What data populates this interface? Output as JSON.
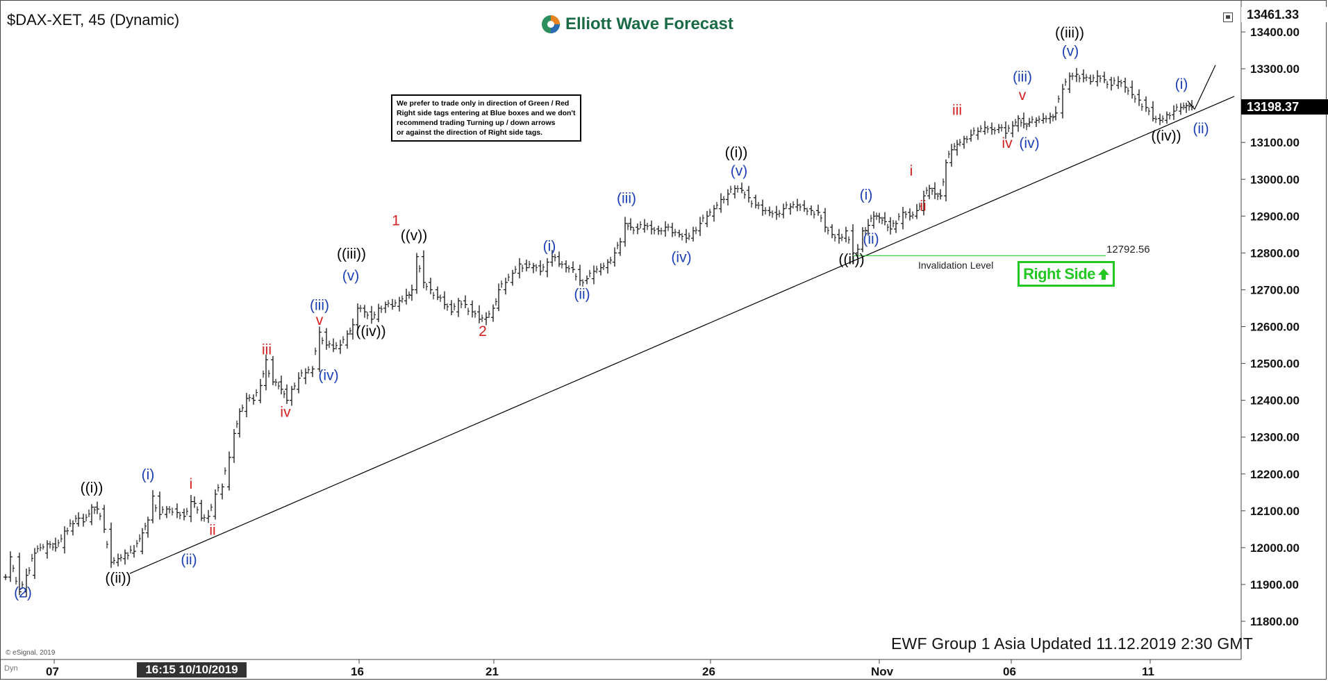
{
  "title": "$DAX-XET, 45 (Dynamic)",
  "logo": {
    "text": "Elliott Wave Forecast"
  },
  "note": {
    "lines": [
      "We prefer to trade only in direction of Green / Red",
      "Right side tags entering at Blue boxes and we don't",
      "recommend trading Turning up / down arrows",
      "or against the direction of Right side tags."
    ]
  },
  "right_side_tag": {
    "label": "Right Side",
    "icon": "arrow-up-icon",
    "color": "#22c722"
  },
  "invalidation": {
    "label": "Invalidation Level",
    "price": "12792.56",
    "color": "#22c722"
  },
  "footer": "EWF Group 1 Asia Updated 11.12.2019 2:30 GMT",
  "copyright": "© eSignal, 2019",
  "dyn_label": "Dyn",
  "cursor_tag": "16:15 10/10/2019",
  "price_tags": {
    "top": "13461.33",
    "last": "13198.37"
  },
  "colors": {
    "blue_label": "#1c3fb5",
    "red_label": "#d42020",
    "black_label": "#000000",
    "bars": "#111111"
  },
  "chart_data": {
    "type": "ohlc-bar",
    "instrument": "$DAX-XET",
    "ylim": [
      11700,
      13470
    ],
    "yticks": [
      11800,
      11900,
      12000,
      12100,
      12200,
      12300,
      12400,
      12500,
      12600,
      12700,
      12800,
      12900,
      13000,
      13100,
      13200,
      13300,
      13400
    ],
    "ytick_labels": [
      "11800.00",
      "11900.00",
      "12000.00",
      "12100.00",
      "12200.00",
      "12300.00",
      "12400.00",
      "12500.00",
      "12600.00",
      "12700.00",
      "12800.00",
      "12900.00",
      "13000.00",
      "13100.00",
      "13200.00",
      "13300.00",
      "13400.00"
    ],
    "xlim": [
      0,
      1780
    ],
    "xticks": [
      {
        "pos": 78,
        "label": "07"
      },
      {
        "pos": 517,
        "label": "16"
      },
      {
        "pos": 711,
        "label": "21"
      },
      {
        "pos": 1023,
        "label": "26"
      },
      {
        "pos": 1266,
        "label": "Nov"
      },
      {
        "pos": 1456,
        "label": "06"
      },
      {
        "pos": 1656,
        "label": "11"
      }
    ],
    "price_path": [
      [
        8,
        11920
      ],
      [
        15,
        11975
      ],
      [
        28,
        11880
      ],
      [
        38,
        11925
      ],
      [
        50,
        11985
      ],
      [
        68,
        12010
      ],
      [
        80,
        12000
      ],
      [
        93,
        12045
      ],
      [
        105,
        12065
      ],
      [
        113,
        12080
      ],
      [
        120,
        12070
      ],
      [
        132,
        12110
      ],
      [
        140,
        12105
      ],
      [
        150,
        12050
      ],
      [
        160,
        11960
      ],
      [
        170,
        11970
      ],
      [
        180,
        11985
      ],
      [
        193,
        11990
      ],
      [
        205,
        12040
      ],
      [
        213,
        12075
      ],
      [
        220,
        12140
      ],
      [
        230,
        12090
      ],
      [
        240,
        12105
      ],
      [
        255,
        12095
      ],
      [
        265,
        12085
      ],
      [
        275,
        12125
      ],
      [
        280,
        12120
      ],
      [
        290,
        12080
      ],
      [
        300,
        12085
      ],
      [
        310,
        12145
      ],
      [
        320,
        12165
      ],
      [
        330,
        12245
      ],
      [
        337,
        12310
      ],
      [
        345,
        12370
      ],
      [
        355,
        12405
      ],
      [
        365,
        12400
      ],
      [
        375,
        12440
      ],
      [
        383,
        12510
      ],
      [
        393,
        12450
      ],
      [
        405,
        12430
      ],
      [
        413,
        12400
      ],
      [
        420,
        12430
      ],
      [
        430,
        12460
      ],
      [
        440,
        12475
      ],
      [
        450,
        12485
      ],
      [
        460,
        12585
      ],
      [
        470,
        12550
      ],
      [
        480,
        12540
      ],
      [
        490,
        12550
      ],
      [
        500,
        12580
      ],
      [
        508,
        12605
      ],
      [
        515,
        12650
      ],
      [
        525,
        12640
      ],
      [
        535,
        12620
      ],
      [
        545,
        12650
      ],
      [
        555,
        12660
      ],
      [
        565,
        12655
      ],
      [
        575,
        12670
      ],
      [
        585,
        12685
      ],
      [
        593,
        12700
      ],
      [
        600,
        12790
      ],
      [
        610,
        12720
      ],
      [
        620,
        12700
      ],
      [
        630,
        12680
      ],
      [
        640,
        12660
      ],
      [
        650,
        12640
      ],
      [
        660,
        12670
      ],
      [
        670,
        12660
      ],
      [
        680,
        12640
      ],
      [
        690,
        12620
      ],
      [
        700,
        12625
      ],
      [
        710,
        12650
      ],
      [
        718,
        12700
      ],
      [
        728,
        12720
      ],
      [
        738,
        12745
      ],
      [
        748,
        12770
      ],
      [
        758,
        12760
      ],
      [
        768,
        12765
      ],
      [
        778,
        12750
      ],
      [
        788,
        12775
      ],
      [
        795,
        12790
      ],
      [
        805,
        12770
      ],
      [
        815,
        12760
      ],
      [
        825,
        12755
      ],
      [
        835,
        12725
      ],
      [
        845,
        12730
      ],
      [
        855,
        12750
      ],
      [
        865,
        12760
      ],
      [
        875,
        12775
      ],
      [
        885,
        12800
      ],
      [
        893,
        12830
      ],
      [
        900,
        12880
      ],
      [
        908,
        12870
      ],
      [
        918,
        12865
      ],
      [
        928,
        12875
      ],
      [
        938,
        12865
      ],
      [
        948,
        12860
      ],
      [
        958,
        12870
      ],
      [
        968,
        12855
      ],
      [
        978,
        12850
      ],
      [
        988,
        12840
      ],
      [
        998,
        12860
      ],
      [
        1008,
        12880
      ],
      [
        1018,
        12900
      ],
      [
        1028,
        12920
      ],
      [
        1038,
        12945
      ],
      [
        1048,
        12960
      ],
      [
        1058,
        12975
      ],
      [
        1068,
        12970
      ],
      [
        1078,
        12950
      ],
      [
        1088,
        12930
      ],
      [
        1098,
        12915
      ],
      [
        1108,
        12910
      ],
      [
        1118,
        12905
      ],
      [
        1128,
        12920
      ],
      [
        1138,
        12925
      ],
      [
        1148,
        12930
      ],
      [
        1158,
        12920
      ],
      [
        1168,
        12915
      ],
      [
        1178,
        12910
      ],
      [
        1188,
        12870
      ],
      [
        1198,
        12850
      ],
      [
        1208,
        12840
      ],
      [
        1218,
        12860
      ],
      [
        1228,
        12800
      ],
      [
        1235,
        12810
      ],
      [
        1242,
        12860
      ],
      [
        1250,
        12875
      ],
      [
        1258,
        12900
      ],
      [
        1266,
        12895
      ],
      [
        1274,
        12885
      ],
      [
        1282,
        12865
      ],
      [
        1290,
        12880
      ],
      [
        1300,
        12910
      ],
      [
        1310,
        12900
      ],
      [
        1320,
        12915
      ],
      [
        1330,
        12955
      ],
      [
        1338,
        12975
      ],
      [
        1346,
        12960
      ],
      [
        1354,
        12955
      ],
      [
        1362,
        13045
      ],
      [
        1370,
        13080
      ],
      [
        1378,
        13095
      ],
      [
        1388,
        13110
      ],
      [
        1398,
        13120
      ],
      [
        1408,
        13130
      ],
      [
        1418,
        13140
      ],
      [
        1428,
        13135
      ],
      [
        1438,
        13140
      ],
      [
        1448,
        13125
      ],
      [
        1458,
        13145
      ],
      [
        1466,
        13165
      ],
      [
        1474,
        13150
      ],
      [
        1482,
        13155
      ],
      [
        1492,
        13160
      ],
      [
        1502,
        13165
      ],
      [
        1512,
        13170
      ],
      [
        1520,
        13180
      ],
      [
        1530,
        13245
      ],
      [
        1540,
        13280
      ],
      [
        1550,
        13285
      ],
      [
        1560,
        13275
      ],
      [
        1570,
        13265
      ],
      [
        1580,
        13280
      ],
      [
        1590,
        13270
      ],
      [
        1600,
        13255
      ],
      [
        1610,
        13265
      ],
      [
        1620,
        13250
      ],
      [
        1630,
        13230
      ],
      [
        1640,
        13215
      ],
      [
        1650,
        13195
      ],
      [
        1660,
        13165
      ],
      [
        1670,
        13160
      ],
      [
        1680,
        13175
      ],
      [
        1690,
        13185
      ],
      [
        1700,
        13195
      ],
      [
        1708,
        13200
      ],
      [
        1716,
        13198
      ]
    ],
    "trendline": [
      [
        187,
        11930
      ],
      [
        1777,
        13225
      ]
    ],
    "projection": [
      [
        1720,
        13190
      ],
      [
        1750,
        13310
      ]
    ],
    "invalidation_line": {
      "price": 12792.56,
      "x_start": 1229,
      "x_end": 1592
    },
    "wave_labels": [
      {
        "text": "(2)",
        "x": 33,
        "y": 11865,
        "color": "blue"
      },
      {
        "text": "((i))",
        "x": 132,
        "y": 12150,
        "color": "black"
      },
      {
        "text": "((ii))",
        "x": 170,
        "y": 11905,
        "color": "black"
      },
      {
        "text": "(i)",
        "x": 213,
        "y": 12185,
        "color": "blue"
      },
      {
        "text": "(ii)",
        "x": 272,
        "y": 11955,
        "color": "blue"
      },
      {
        "text": "i",
        "x": 275,
        "y": 12160,
        "color": "red"
      },
      {
        "text": "ii",
        "x": 306,
        "y": 12035,
        "color": "red"
      },
      {
        "text": "iii",
        "x": 384,
        "y": 12525,
        "color": "red"
      },
      {
        "text": "iv",
        "x": 411,
        "y": 12355,
        "color": "red"
      },
      {
        "text": "v",
        "x": 460,
        "y": 12605,
        "color": "red"
      },
      {
        "text": "(iii)",
        "x": 460,
        "y": 12645,
        "color": "blue"
      },
      {
        "text": "(iv)",
        "x": 473,
        "y": 12455,
        "color": "blue"
      },
      {
        "text": "(v)",
        "x": 505,
        "y": 12725,
        "color": "blue"
      },
      {
        "text": "((iii))",
        "x": 506,
        "y": 12785,
        "color": "black"
      },
      {
        "text": "((iv))",
        "x": 534,
        "y": 12575,
        "color": "black"
      },
      {
        "text": "1",
        "x": 570,
        "y": 12875,
        "color": "red"
      },
      {
        "text": "((v))",
        "x": 596,
        "y": 12835,
        "color": "black"
      },
      {
        "text": "2",
        "x": 695,
        "y": 12575,
        "color": "red"
      },
      {
        "text": "(i)",
        "x": 791,
        "y": 12805,
        "color": "blue"
      },
      {
        "text": "(ii)",
        "x": 838,
        "y": 12675,
        "color": "blue"
      },
      {
        "text": "(iii)",
        "x": 902,
        "y": 12935,
        "color": "blue"
      },
      {
        "text": "(iv)",
        "x": 981,
        "y": 12775,
        "color": "blue"
      },
      {
        "text": "((i))",
        "x": 1060,
        "y": 13060,
        "color": "black"
      },
      {
        "text": "(v)",
        "x": 1064,
        "y": 13010,
        "color": "blue"
      },
      {
        "text": "((ii))",
        "x": 1226,
        "y": 12770,
        "color": "black"
      },
      {
        "text": "(i)",
        "x": 1247,
        "y": 12945,
        "color": "blue"
      },
      {
        "text": "(ii)",
        "x": 1254,
        "y": 12825,
        "color": "blue"
      },
      {
        "text": "i",
        "x": 1312,
        "y": 13010,
        "color": "red"
      },
      {
        "text": "ii",
        "x": 1329,
        "y": 12915,
        "color": "red"
      },
      {
        "text": "iii",
        "x": 1378,
        "y": 13175,
        "color": "red"
      },
      {
        "text": "iv",
        "x": 1450,
        "y": 13085,
        "color": "red"
      },
      {
        "text": "v",
        "x": 1472,
        "y": 13215,
        "color": "red"
      },
      {
        "text": "(iii)",
        "x": 1472,
        "y": 13265,
        "color": "blue"
      },
      {
        "text": "(iv)",
        "x": 1482,
        "y": 13085,
        "color": "blue"
      },
      {
        "text": "((iii))",
        "x": 1540,
        "y": 13385,
        "color": "black"
      },
      {
        "text": "(v)",
        "x": 1541,
        "y": 13335,
        "color": "blue"
      },
      {
        "text": "((iv))",
        "x": 1679,
        "y": 13105,
        "color": "black"
      },
      {
        "text": "(i)",
        "x": 1701,
        "y": 13245,
        "color": "blue"
      },
      {
        "text": "(ii)",
        "x": 1729,
        "y": 13125,
        "color": "blue"
      }
    ]
  }
}
